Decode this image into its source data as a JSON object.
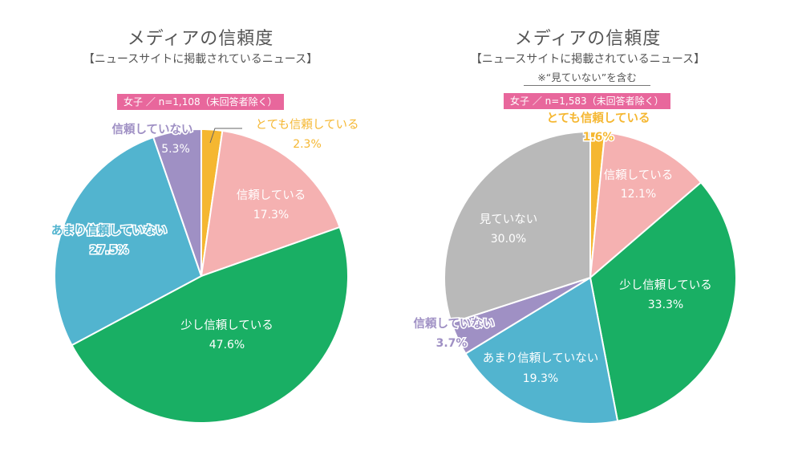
{
  "colors": {
    "very_trust": "#f5b731",
    "trust": "#f5b1b1",
    "somewhat_trust": "#19af64",
    "not_much": "#52b4cf",
    "no_trust": "#9f90c4",
    "not_seen": "#b9b9b9"
  },
  "chart_data": [
    {
      "type": "pie",
      "title": "メディアの信頼度",
      "subtitle": "【ニュースサイトに掲載されているニュース】",
      "note": "",
      "sample_label": "女子 ／ n=1,108（未回答者除く）",
      "slices": [
        {
          "label": "とても信頼している",
          "value": 2.3,
          "value_label": "2.3%",
          "color_key": "very_trust"
        },
        {
          "label": "信頼している",
          "value": 17.3,
          "value_label": "17.3%",
          "color_key": "trust"
        },
        {
          "label": "少し信頼している",
          "value": 47.6,
          "value_label": "47.6%",
          "color_key": "somewhat_trust"
        },
        {
          "label": "あまり信頼していない",
          "value": 27.5,
          "value_label": "27.5%",
          "color_key": "not_much"
        },
        {
          "label": "信頼していない",
          "value": 5.3,
          "value_label": "5.3%",
          "color_key": "no_trust"
        }
      ]
    },
    {
      "type": "pie",
      "title": "メディアの信頼度",
      "subtitle": "【ニュースサイトに掲載されているニュース】",
      "note": "※“見ていない”を含む",
      "sample_label": "女子 ／ n=1,583（未回答者除く）",
      "slices": [
        {
          "label": "とても信頼している",
          "value": 1.6,
          "value_label": "1.6%",
          "color_key": "very_trust"
        },
        {
          "label": "信頼している",
          "value": 12.1,
          "value_label": "12.1%",
          "color_key": "trust"
        },
        {
          "label": "少し信頼している",
          "value": 33.3,
          "value_label": "33.3%",
          "color_key": "somewhat_trust"
        },
        {
          "label": "あまり信頼していない",
          "value": 19.3,
          "value_label": "19.3%",
          "color_key": "not_much"
        },
        {
          "label": "信頼していない",
          "value": 3.7,
          "value_label": "3.7%",
          "color_key": "no_trust"
        },
        {
          "label": "見ていない",
          "value": 30.0,
          "value_label": "30.0%",
          "color_key": "not_seen"
        }
      ]
    }
  ]
}
